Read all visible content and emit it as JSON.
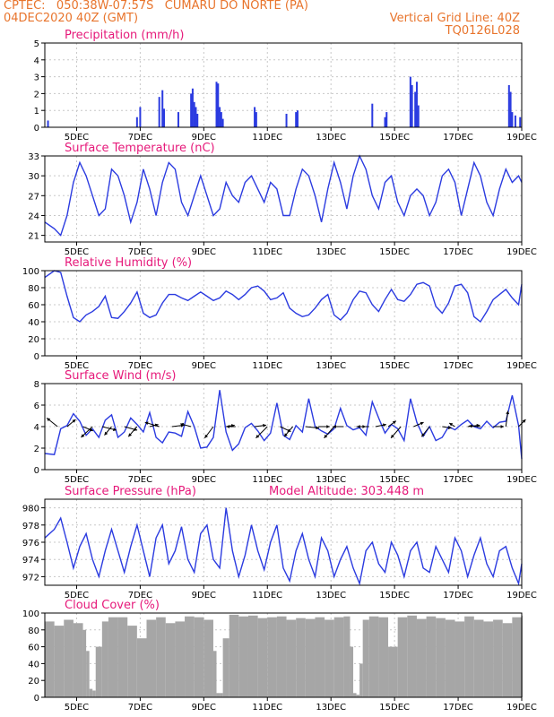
{
  "header": {
    "line1_left": "CPTEC:   050:38W-07:57S   CUMARU DO NORTE (PA)",
    "line2_left": "04DEC2020 40Z (GMT)",
    "line2_right": "Vertical Grid Line: 40Z",
    "line3_right": "TQ0126L028"
  },
  "colors": {
    "header": "#e8742c",
    "title": "#e6197a",
    "line": "#2b3be0",
    "bar": "#2b3be0",
    "cloud": "#a6a6a6",
    "grid": "#c8c8c8"
  },
  "xaxis": {
    "labels": [
      "5DEC",
      "7DEC",
      "9DEC",
      "11DEC",
      "13DEC",
      "15DEC",
      "17DEC",
      "19DEC"
    ],
    "label_days": [
      5,
      7,
      9,
      11,
      13,
      15,
      17,
      19
    ],
    "range_days": [
      4.0,
      19.0
    ]
  },
  "chart_data": [
    {
      "id": "precip",
      "type": "bar",
      "title": "Precipitation  (mm/h)",
      "ylim": [
        0,
        5
      ],
      "yticks": [
        0,
        1,
        2,
        3,
        4,
        5
      ],
      "x": [
        4.1,
        6.9,
        7.0,
        7.6,
        7.7,
        7.75,
        8.2,
        8.6,
        8.65,
        8.7,
        8.75,
        8.8,
        9.4,
        9.45,
        9.5,
        9.55,
        9.6,
        10.6,
        10.65,
        11.6,
        11.9,
        11.95,
        14.3,
        14.7,
        14.75,
        15.5,
        15.55,
        15.65,
        15.7,
        15.75,
        18.6,
        18.65,
        18.7,
        18.8,
        18.95
      ],
      "values": [
        0.4,
        0.6,
        1.2,
        1.8,
        2.2,
        1.1,
        0.9,
        2.0,
        2.3,
        1.5,
        1.2,
        0.8,
        2.7,
        2.6,
        1.2,
        0.9,
        0.5,
        1.2,
        0.9,
        0.8,
        0.9,
        1.0,
        1.4,
        0.6,
        0.9,
        3.0,
        2.5,
        2.1,
        2.7,
        1.3,
        2.5,
        2.1,
        0.9,
        0.7,
        0.6
      ]
    },
    {
      "id": "temp",
      "type": "line",
      "title": "Surface Temperature  (nC)",
      "ylim": [
        20,
        33
      ],
      "yticks": [
        21,
        24,
        27,
        30,
        33
      ],
      "x": [
        4.0,
        4.3,
        4.5,
        4.7,
        4.9,
        5.1,
        5.3,
        5.5,
        5.7,
        5.9,
        6.1,
        6.3,
        6.5,
        6.7,
        6.9,
        7.1,
        7.3,
        7.5,
        7.7,
        7.9,
        8.1,
        8.3,
        8.5,
        8.7,
        8.9,
        9.1,
        9.3,
        9.5,
        9.7,
        9.9,
        10.1,
        10.3,
        10.5,
        10.7,
        10.9,
        11.1,
        11.3,
        11.5,
        11.7,
        11.9,
        12.1,
        12.3,
        12.5,
        12.7,
        12.9,
        13.1,
        13.3,
        13.5,
        13.7,
        13.9,
        14.1,
        14.3,
        14.5,
        14.7,
        14.9,
        15.1,
        15.3,
        15.5,
        15.7,
        15.9,
        16.1,
        16.3,
        16.5,
        16.7,
        16.9,
        17.1,
        17.3,
        17.5,
        17.7,
        17.9,
        18.1,
        18.3,
        18.5,
        18.7,
        18.9,
        19.0
      ],
      "values": [
        23,
        22,
        21,
        24,
        29,
        32,
        30,
        27,
        24,
        25,
        31,
        30,
        27,
        23,
        26,
        31,
        28,
        24,
        29,
        32,
        31,
        26,
        24,
        27,
        30,
        27,
        24,
        25,
        29,
        27,
        26,
        29,
        30,
        28,
        26,
        29,
        28,
        24,
        24,
        28,
        31,
        30,
        27,
        23,
        28,
        32,
        29,
        25,
        30,
        33,
        31,
        27,
        25,
        29,
        30,
        26,
        24,
        27,
        28,
        27,
        24,
        26,
        30,
        31,
        29,
        24,
        28,
        32,
        30,
        26,
        24,
        28,
        31,
        29,
        30,
        29
      ]
    },
    {
      "id": "rh",
      "type": "line",
      "title": "Relative Humidity  (%)",
      "ylim": [
        0,
        100
      ],
      "yticks": [
        0,
        20,
        40,
        60,
        80,
        100
      ],
      "x": [
        4.0,
        4.3,
        4.5,
        4.7,
        4.9,
        5.1,
        5.3,
        5.5,
        5.7,
        5.9,
        6.1,
        6.3,
        6.5,
        6.7,
        6.9,
        7.1,
        7.3,
        7.5,
        7.7,
        7.9,
        8.1,
        8.3,
        8.5,
        8.7,
        8.9,
        9.1,
        9.3,
        9.5,
        9.7,
        9.9,
        10.1,
        10.3,
        10.5,
        10.7,
        10.9,
        11.1,
        11.3,
        11.5,
        11.7,
        11.9,
        12.1,
        12.3,
        12.5,
        12.7,
        12.9,
        13.1,
        13.3,
        13.5,
        13.7,
        13.9,
        14.1,
        14.3,
        14.5,
        14.7,
        14.9,
        15.1,
        15.3,
        15.5,
        15.7,
        15.9,
        16.1,
        16.3,
        16.5,
        16.7,
        16.9,
        17.1,
        17.3,
        17.5,
        17.7,
        17.9,
        18.1,
        18.3,
        18.5,
        18.7,
        18.9,
        19.0
      ],
      "values": [
        92,
        100,
        98,
        70,
        45,
        40,
        48,
        52,
        58,
        70,
        45,
        44,
        52,
        62,
        75,
        50,
        45,
        48,
        62,
        72,
        72,
        68,
        65,
        70,
        75,
        70,
        65,
        68,
        76,
        72,
        66,
        72,
        80,
        82,
        76,
        66,
        68,
        74,
        56,
        50,
        46,
        48,
        56,
        66,
        72,
        48,
        42,
        50,
        66,
        76,
        74,
        60,
        52,
        66,
        78,
        66,
        64,
        72,
        84,
        86,
        82,
        58,
        50,
        62,
        82,
        84,
        74,
        46,
        40,
        52,
        66,
        72,
        78,
        68,
        60,
        84
      ]
    },
    {
      "id": "wind",
      "type": "line",
      "title": "Surface Wind  (m/s)",
      "ylim": [
        0,
        8
      ],
      "yticks": [
        0,
        2,
        4,
        6,
        8
      ],
      "x": [
        4.0,
        4.3,
        4.5,
        4.7,
        4.9,
        5.1,
        5.3,
        5.5,
        5.7,
        5.9,
        6.1,
        6.3,
        6.5,
        6.7,
        6.9,
        7.1,
        7.3,
        7.5,
        7.7,
        7.9,
        8.1,
        8.3,
        8.5,
        8.7,
        8.9,
        9.1,
        9.3,
        9.5,
        9.7,
        9.9,
        10.1,
        10.3,
        10.5,
        10.7,
        10.9,
        11.1,
        11.3,
        11.5,
        11.7,
        11.9,
        12.1,
        12.3,
        12.5,
        12.7,
        12.9,
        13.1,
        13.3,
        13.5,
        13.7,
        13.9,
        14.1,
        14.3,
        14.5,
        14.7,
        14.9,
        15.1,
        15.3,
        15.5,
        15.7,
        15.9,
        16.1,
        16.3,
        16.5,
        16.7,
        16.9,
        17.1,
        17.3,
        17.5,
        17.7,
        17.9,
        18.1,
        18.3,
        18.5,
        18.7,
        18.9,
        19.0
      ],
      "values": [
        1.5,
        1.4,
        3.8,
        4.1,
        5.2,
        4.5,
        3.2,
        3.8,
        3.0,
        4.6,
        5.1,
        3.0,
        3.5,
        4.8,
        4.2,
        3.5,
        5.3,
        3.0,
        2.5,
        3.5,
        3.4,
        3.1,
        5.4,
        4.0,
        2.0,
        2.1,
        3.0,
        7.4,
        3.5,
        1.8,
        2.4,
        3.9,
        4.3,
        3.6,
        2.7,
        3.4,
        6.2,
        3.2,
        2.8,
        4.1,
        3.5,
        6.6,
        4.0,
        3.6,
        3.3,
        3.8,
        5.7,
        4.1,
        3.7,
        3.9,
        3.2,
        6.3,
        4.8,
        3.4,
        4.2,
        3.8,
        2.7,
        6.6,
        4.4,
        3.1,
        4.0,
        2.7,
        3.0,
        4.0,
        3.7,
        4.2,
        4.6,
        4.0,
        3.8,
        4.5,
        3.9,
        4.4,
        4.5,
        6.9,
        4.1,
        1.0
      ],
      "barbs_x": [
        4.4,
        4.7,
        5.2,
        5.5,
        5.8,
        6.1,
        6.5,
        6.9,
        7.3,
        7.6,
        8.0,
        8.6,
        9.3,
        9.7,
        10.0,
        10.6,
        11.0,
        11.4,
        11.8,
        12.2,
        12.6,
        13.1,
        13.4,
        13.8,
        14.2,
        14.4,
        14.8,
        15.2,
        15.6,
        16.1,
        16.5,
        16.9,
        17.3,
        17.7,
        18.1,
        18.5,
        18.9
      ],
      "barbs_u": [
        -1.5,
        1.2,
        1.4,
        -1.6,
        2.0,
        -1.0,
        1.8,
        -1.2,
        1.2,
        -2.0,
        1.7,
        -1.5,
        -1.2,
        1.2,
        -1.3,
        1.6,
        -1.6,
        1.5,
        -1.2,
        1.9,
        1.6,
        -1.4,
        -1.5,
        1.3,
        -1.7,
        1.5,
        1.1,
        -1.4,
        1.4,
        -1.1,
        1.3,
        -0.8,
        1.7,
        -1.6,
        1.5,
        0.3,
        1.0
      ],
      "barbs_v": [
        1.2,
        1.0,
        -0.6,
        -1.5,
        -0.5,
        -1.2,
        -0.5,
        -1.4,
        0.3,
        0.6,
        0.2,
        0.4,
        -1.6,
        0.2,
        0.0,
        0.2,
        -1.6,
        -0.7,
        -1.4,
        -0.2,
        0.0,
        -1.6,
        0.0,
        0.0,
        0.0,
        0.3,
        0.8,
        -1.6,
        0.6,
        -1.4,
        -0.2,
        0.5,
        0.2,
        0.1,
        0.0,
        2.2,
        1.0
      ]
    },
    {
      "id": "pressure",
      "type": "line",
      "title": "Surface Pressure  (hPa)",
      "subtitle": "Model Altitude: 303.448  m",
      "ylim": [
        971,
        981
      ],
      "yticks": [
        972,
        974,
        976,
        978,
        980
      ],
      "x": [
        4.0,
        4.3,
        4.5,
        4.7,
        4.9,
        5.1,
        5.3,
        5.5,
        5.7,
        5.9,
        6.1,
        6.3,
        6.5,
        6.7,
        6.9,
        7.1,
        7.3,
        7.5,
        7.7,
        7.9,
        8.1,
        8.3,
        8.5,
        8.7,
        8.9,
        9.1,
        9.3,
        9.5,
        9.7,
        9.9,
        10.1,
        10.3,
        10.5,
        10.7,
        10.9,
        11.1,
        11.3,
        11.5,
        11.7,
        11.9,
        12.1,
        12.3,
        12.5,
        12.7,
        12.9,
        13.1,
        13.3,
        13.5,
        13.7,
        13.9,
        14.1,
        14.3,
        14.5,
        14.7,
        14.9,
        15.1,
        15.3,
        15.5,
        15.7,
        15.9,
        16.1,
        16.3,
        16.5,
        16.7,
        16.9,
        17.1,
        17.3,
        17.5,
        17.7,
        17.9,
        18.1,
        18.3,
        18.5,
        18.7,
        18.9,
        19.0
      ],
      "values": [
        976.5,
        977.5,
        978.8,
        976.0,
        973.0,
        975.5,
        977.0,
        974.0,
        972.0,
        975.0,
        977.5,
        975.0,
        972.5,
        975.5,
        978.0,
        975.0,
        972.0,
        976.5,
        978.0,
        973.5,
        975.0,
        977.8,
        974.0,
        972.5,
        977.0,
        978.0,
        974.0,
        973.0,
        980.0,
        975.0,
        972.0,
        974.5,
        978.0,
        975.0,
        972.8,
        976.0,
        978.0,
        973.0,
        971.5,
        975.0,
        977.0,
        974.0,
        972.0,
        976.5,
        975.0,
        972.0,
        974.0,
        975.5,
        973.0,
        971.2,
        975.0,
        976.0,
        973.5,
        972.5,
        976.0,
        974.5,
        972.0,
        975.0,
        976.0,
        973.0,
        972.5,
        975.5,
        974.0,
        972.5,
        976.5,
        975.0,
        972.0,
        974.5,
        976.5,
        973.5,
        972.0,
        975.0,
        975.5,
        973.0,
        971.2,
        973.5
      ]
    },
    {
      "id": "cloud",
      "type": "bar",
      "title": "Cloud Cover  (%)",
      "ylim": [
        0,
        100
      ],
      "yticks": [
        0,
        20,
        40,
        60,
        80,
        100
      ],
      "x": [
        4.0,
        4.3,
        4.6,
        4.9,
        5.2,
        5.3,
        5.4,
        5.5,
        5.6,
        5.8,
        6.0,
        6.3,
        6.6,
        6.9,
        7.2,
        7.5,
        7.8,
        8.1,
        8.4,
        8.7,
        9.0,
        9.3,
        9.4,
        9.5,
        9.6,
        9.8,
        10.1,
        10.4,
        10.7,
        11.0,
        11.3,
        11.6,
        11.9,
        12.2,
        12.5,
        12.8,
        13.1,
        13.4,
        13.6,
        13.7,
        13.8,
        13.9,
        14.0,
        14.2,
        14.5,
        14.8,
        15.1,
        15.4,
        15.7,
        16.0,
        16.3,
        16.6,
        16.9,
        17.2,
        17.5,
        17.8,
        18.1,
        18.4,
        18.7,
        19.0
      ],
      "values": [
        90,
        85,
        92,
        88,
        80,
        55,
        10,
        8,
        60,
        90,
        95,
        95,
        85,
        70,
        92,
        95,
        88,
        90,
        96,
        95,
        92,
        55,
        5,
        5,
        70,
        98,
        96,
        97,
        94,
        95,
        96,
        92,
        94,
        93,
        95,
        92,
        95,
        96,
        60,
        5,
        3,
        40,
        92,
        96,
        95,
        60,
        95,
        97,
        93,
        96,
        94,
        92,
        90,
        96,
        92,
        90,
        92,
        88,
        95,
        97
      ]
    }
  ]
}
